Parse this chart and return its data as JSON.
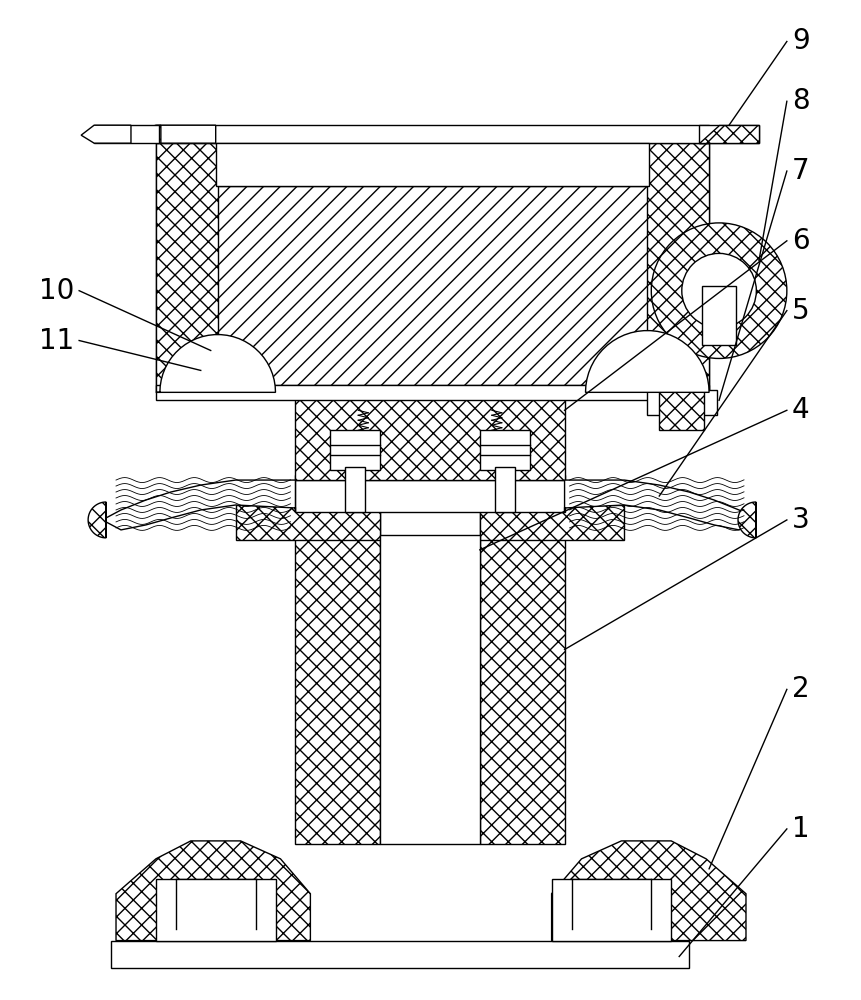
{
  "bg_color": "#ffffff",
  "line_color": "#000000",
  "lw": 1.0,
  "figsize": [
    8.62,
    10.0
  ],
  "dpi": 100,
  "label_fontsize": 20
}
